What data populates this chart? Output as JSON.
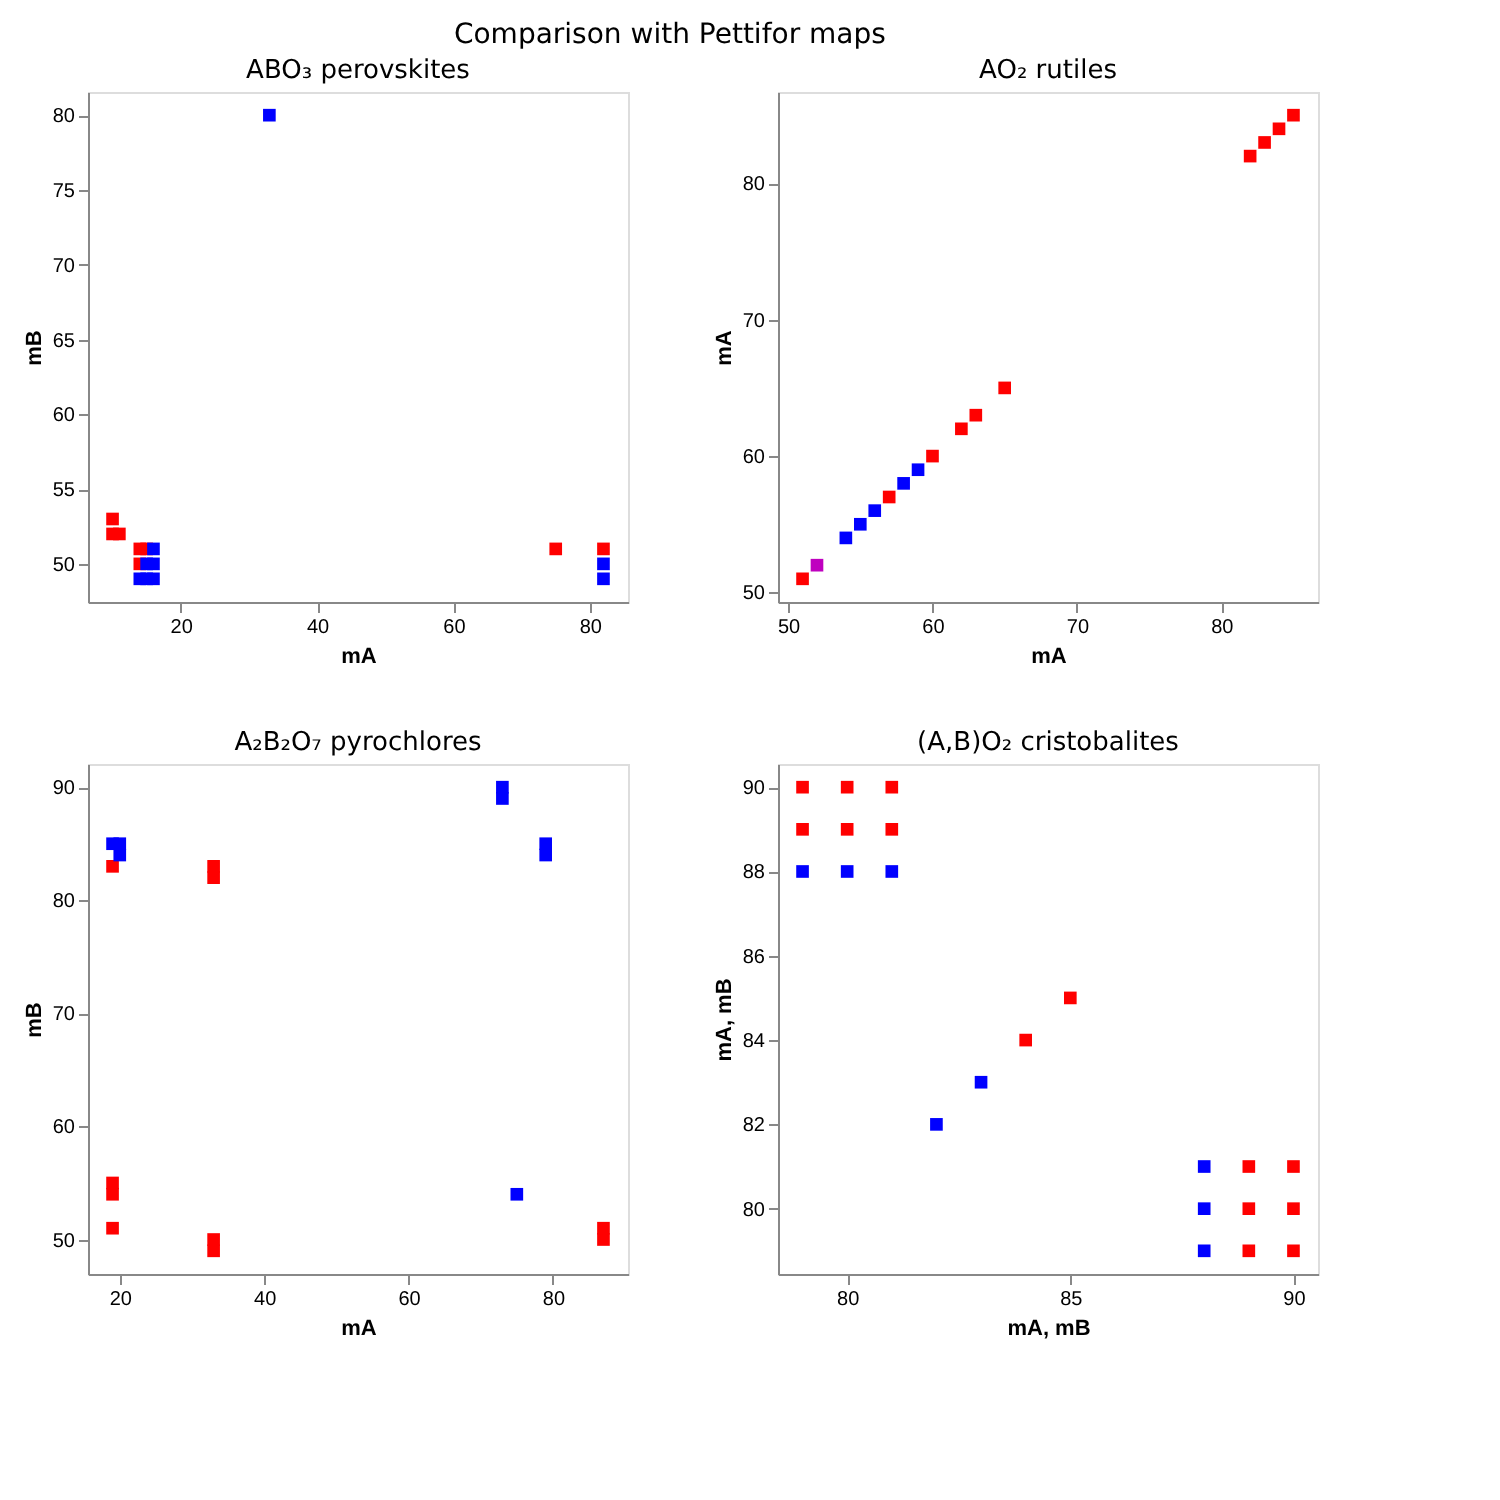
{
  "chart_data": [
    {
      "type": "scatter",
      "title": "ABO₃ perovskites",
      "annotations": [
        "Comparison with Pettifor maps"
      ],
      "xlabel": "mA",
      "ylabel": "mB",
      "marker": "square",
      "grid": false,
      "legend": false,
      "xlim": [
        6.4,
        85.6
      ],
      "xticks": [
        20,
        40,
        60,
        80
      ],
      "ylim": [
        47.45,
        81.55
      ],
      "yticks": [
        50,
        55,
        60,
        65,
        70,
        75,
        80
      ],
      "series": [
        {
          "color": "#ff0000",
          "x": [
            10,
            10,
            11,
            14,
            15,
            14,
            75,
            82
          ],
          "values": [
            53,
            52,
            52,
            51,
            51,
            50,
            51,
            51
          ]
        },
        {
          "color": "#0000ff",
          "x": [
            16,
            15,
            16,
            14,
            15,
            16,
            33,
            82,
            82
          ],
          "values": [
            51,
            50,
            50,
            49,
            49,
            49,
            80,
            50,
            49
          ]
        }
      ]
    },
    {
      "type": "scatter",
      "title": "AO₂ rutiles",
      "xlabel": "mA",
      "ylabel": "mA",
      "marker": "square",
      "grid": false,
      "legend": false,
      "xlim": [
        49.3,
        86.7
      ],
      "xticks": [
        50,
        60,
        70,
        80
      ],
      "ylim": [
        49.3,
        86.7
      ],
      "yticks": [
        50,
        60,
        70,
        80
      ],
      "series": [
        {
          "color": "#ff0000",
          "x": [
            51,
            57,
            60,
            62,
            63,
            65,
            82,
            83,
            84,
            85
          ],
          "values": [
            51,
            57,
            60,
            62,
            63,
            65,
            82,
            83,
            84,
            85
          ]
        },
        {
          "color": "#bf00bf",
          "x": [
            52
          ],
          "values": [
            52
          ]
        },
        {
          "color": "#0000ff",
          "x": [
            54,
            55,
            56,
            58,
            59
          ],
          "values": [
            54,
            55,
            56,
            58,
            59
          ]
        }
      ]
    },
    {
      "type": "scatter",
      "title": "A₂B₂O₇ pyrochlores",
      "xlabel": "mA",
      "ylabel": "mB",
      "marker": "square",
      "grid": false,
      "legend": false,
      "xlim": [
        15.6,
        90.4
      ],
      "xticks": [
        20,
        40,
        60,
        80
      ],
      "ylim": [
        46.95,
        92.05
      ],
      "yticks": [
        50,
        60,
        70,
        80,
        90
      ],
      "series": [
        {
          "color": "#ff0000",
          "x": [
            19,
            33,
            33,
            19,
            19,
            19,
            33,
            33,
            87,
            87
          ],
          "values": [
            83,
            83,
            82,
            55,
            54,
            51,
            50,
            49,
            51,
            50
          ]
        },
        {
          "color": "#0000ff",
          "x": [
            19,
            20,
            20,
            73,
            73,
            79,
            79,
            75
          ],
          "values": [
            85,
            85,
            84,
            90,
            89,
            85,
            84,
            54
          ]
        }
      ]
    },
    {
      "type": "scatter",
      "title": "(A,B)O₂ cristobalites",
      "xlabel": "mA, mB",
      "ylabel": "mA, mB",
      "marker": "square",
      "grid": false,
      "legend": false,
      "xlim": [
        78.45,
        90.55
      ],
      "xticks": [
        80,
        85,
        90
      ],
      "ylim": [
        78.45,
        90.55
      ],
      "yticks": [
        80,
        82,
        84,
        86,
        88,
        90
      ],
      "series": [
        {
          "color": "#ff0000",
          "x": [
            79,
            80,
            81,
            79,
            80,
            81,
            84,
            85,
            89,
            90,
            89,
            90,
            89,
            90
          ],
          "values": [
            90,
            90,
            90,
            89,
            89,
            89,
            84,
            85,
            81,
            81,
            80,
            80,
            79,
            79
          ]
        },
        {
          "color": "#0000ff",
          "x": [
            79,
            80,
            81,
            82,
            83,
            88,
            88,
            88
          ],
          "values": [
            88,
            88,
            88,
            82,
            83,
            81,
            80,
            79
          ]
        }
      ]
    }
  ]
}
